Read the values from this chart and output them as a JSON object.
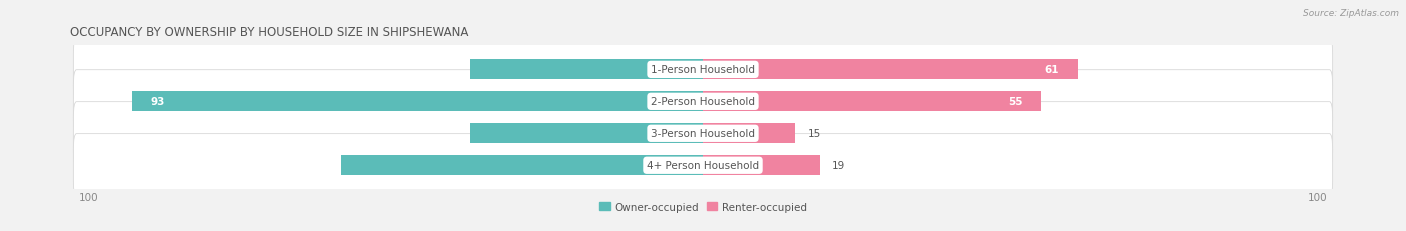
{
  "title": "OCCUPANCY BY OWNERSHIP BY HOUSEHOLD SIZE IN SHIPSHEWANA",
  "source": "Source: ZipAtlas.com",
  "categories": [
    "1-Person Household",
    "2-Person Household",
    "3-Person Household",
    "4+ Person Household"
  ],
  "owner_values": [
    38,
    93,
    38,
    59
  ],
  "renter_values": [
    61,
    55,
    15,
    19
  ],
  "owner_color": "#5bbcb8",
  "renter_color": "#f083a0",
  "owner_color_dark": "#3aa8a4",
  "renter_color_dark": "#e8607e",
  "bg_color": "#f2f2f2",
  "row_bg_color": "#ffffff",
  "row_border_color": "#d8d8d8",
  "axis_limit": 100,
  "title_fontsize": 8.5,
  "label_fontsize": 7.5,
  "value_fontsize": 7.5,
  "legend_owner": "Owner-occupied",
  "legend_renter": "Renter-occupied",
  "tick_label_color": "#888888",
  "label_color": "#555555",
  "title_color": "#555555"
}
